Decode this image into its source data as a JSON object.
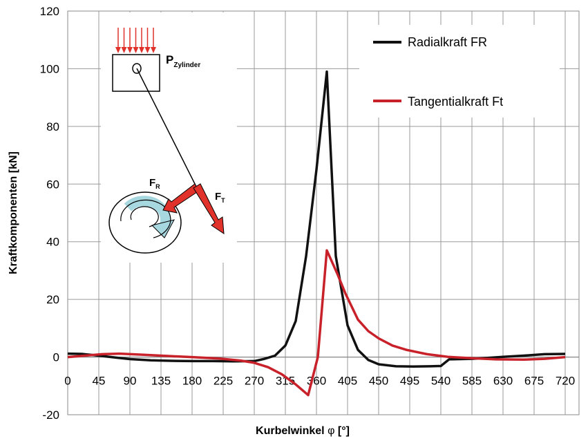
{
  "chart_data": {
    "type": "line",
    "xlabel_main": "Kurbelwinkel ",
    "xlabel_symbol": "φ",
    "xlabel_unit": " [°]",
    "ylabel": "Kraftkomponenten [kN]",
    "xlim": [
      0,
      740
    ],
    "ylim": [
      -20,
      120
    ],
    "x_ticks": [
      0,
      45,
      90,
      135,
      180,
      225,
      270,
      315,
      360,
      405,
      450,
      495,
      540,
      585,
      630,
      675,
      720
    ],
    "y_ticks": [
      -20,
      0,
      20,
      40,
      60,
      80,
      100,
      120
    ],
    "grid": true,
    "series": [
      {
        "name": "Radialkraft FR",
        "color": "#111111",
        "points": [
          [
            0,
            1.2
          ],
          [
            20,
            1.1
          ],
          [
            45,
            0.5
          ],
          [
            70,
            -0.2
          ],
          [
            90,
            -0.7
          ],
          [
            120,
            -1.1
          ],
          [
            150,
            -1.3
          ],
          [
            180,
            -1.4
          ],
          [
            210,
            -1.4
          ],
          [
            240,
            -1.5
          ],
          [
            270,
            -1.4
          ],
          [
            285,
            -0.6
          ],
          [
            300,
            0.5
          ],
          [
            315,
            4
          ],
          [
            330,
            12.5
          ],
          [
            345,
            35
          ],
          [
            360,
            65
          ],
          [
            375,
            99
          ],
          [
            388,
            35
          ],
          [
            405,
            11
          ],
          [
            420,
            2.5
          ],
          [
            435,
            -1
          ],
          [
            450,
            -2.5
          ],
          [
            475,
            -3.2
          ],
          [
            500,
            -3.3
          ],
          [
            525,
            -3.2
          ],
          [
            540,
            -3.1
          ],
          [
            552,
            -0.8
          ],
          [
            585,
            -0.6
          ],
          [
            600,
            -0.4
          ],
          [
            630,
            0.1
          ],
          [
            660,
            0.5
          ],
          [
            690,
            1
          ],
          [
            720,
            1.1
          ]
        ]
      },
      {
        "name": "Tangentialkraft Ft",
        "color": "#c8212a",
        "points": [
          [
            0,
            0
          ],
          [
            25,
            0.5
          ],
          [
            50,
            1
          ],
          [
            75,
            1.2
          ],
          [
            110,
            0.8
          ],
          [
            150,
            0.3
          ],
          [
            180,
            0
          ],
          [
            220,
            -0.5
          ],
          [
            250,
            -1.2
          ],
          [
            270,
            -2
          ],
          [
            290,
            -3.5
          ],
          [
            310,
            -6
          ],
          [
            330,
            -9.5
          ],
          [
            348,
            -13.2
          ],
          [
            362,
            0
          ],
          [
            375,
            37
          ],
          [
            390,
            29
          ],
          [
            402,
            22
          ],
          [
            420,
            13
          ],
          [
            435,
            9
          ],
          [
            450,
            6.5
          ],
          [
            470,
            4
          ],
          [
            490,
            2.5
          ],
          [
            520,
            1
          ],
          [
            550,
            0.1
          ],
          [
            585,
            -0.4
          ],
          [
            620,
            -0.8
          ],
          [
            660,
            -0.9
          ],
          [
            690,
            -0.6
          ],
          [
            720,
            0
          ]
        ]
      }
    ]
  },
  "diagram": {
    "pressure_label": "P",
    "pressure_subscript": "Zylinder",
    "fr_label": "F",
    "fr_subscript": "R",
    "ft_label": "F",
    "ft_subscript": "T",
    "arrow_color": "#e0312a",
    "rotation_color": "#a8d8df"
  }
}
